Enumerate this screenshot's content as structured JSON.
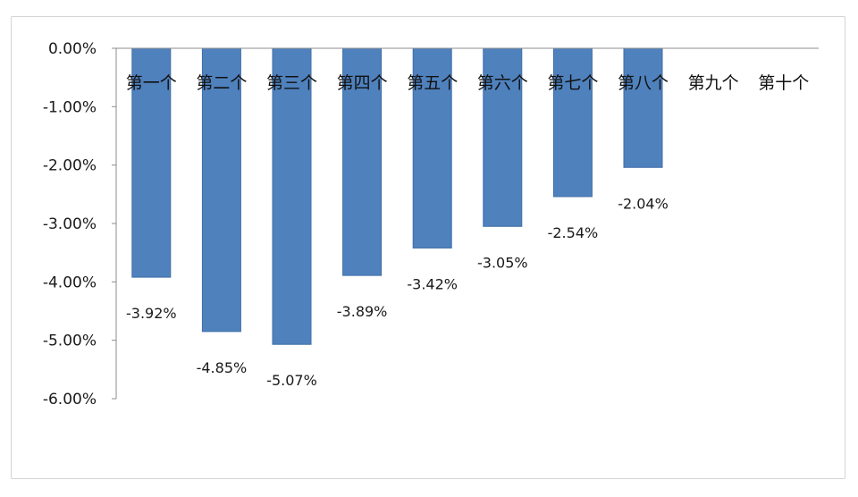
{
  "chart_data": {
    "type": "bar",
    "categories": [
      "第一个",
      "第二个",
      "第三个",
      "第四个",
      "第五个",
      "第六个",
      "第七个",
      "第八个",
      "第九个",
      "第十个"
    ],
    "values": [
      -3.92,
      -4.85,
      -5.07,
      -3.89,
      -3.42,
      -3.05,
      -2.54,
      -2.04,
      null,
      null
    ],
    "data_labels": [
      "-3.92%",
      "-4.85%",
      "-5.07%",
      "-3.89%",
      "-3.42%",
      "-3.05%",
      "-2.54%",
      "-2.04%",
      "",
      ""
    ],
    "ylim": [
      -6,
      0
    ],
    "yticks": [
      0,
      -1,
      -2,
      -3,
      -4,
      -5,
      -6
    ],
    "ytick_labels": [
      "0.00%",
      "-1.00%",
      "-2.00%",
      "-3.00%",
      "-4.00%",
      "-5.00%",
      "-6.00%"
    ],
    "title": "",
    "xlabel": "",
    "ylabel": "",
    "grid": false,
    "legend": "none",
    "bar_color": "#4f81bd",
    "bar_border_color": "#3f6ea6"
  }
}
